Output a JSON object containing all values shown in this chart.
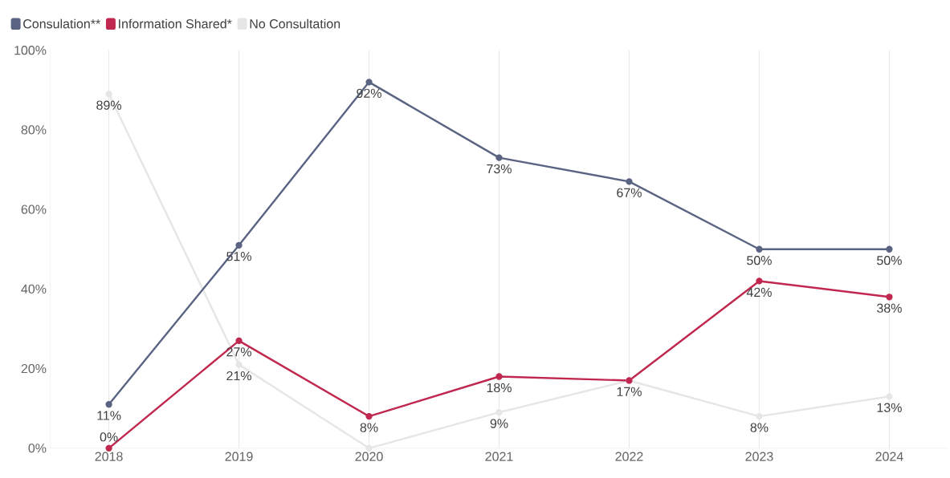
{
  "chart_data": {
    "type": "line",
    "categories": [
      "2018",
      "2019",
      "2020",
      "2021",
      "2022",
      "2023",
      "2024"
    ],
    "series": [
      {
        "name": "Consulation**",
        "color": "#5a6482",
        "values": [
          11,
          51,
          92,
          73,
          67,
          50,
          50
        ],
        "value_labels": [
          "11%",
          "51%",
          "92%",
          "73%",
          "67%",
          "50%",
          "50%"
        ]
      },
      {
        "name": "Information Shared*",
        "color": "#c0284f",
        "values": [
          0,
          27,
          8,
          18,
          17,
          42,
          38
        ],
        "value_labels": [
          "0%",
          "27%",
          "8%",
          "18%",
          null,
          "42%",
          "38%"
        ]
      },
      {
        "name": "No Consultation",
        "color": "#e6e6e6",
        "values": [
          89,
          21,
          0,
          9,
          17,
          8,
          13
        ],
        "value_labels": [
          "89%",
          "21%",
          null,
          "9%",
          "17%",
          "8%",
          "13%"
        ]
      }
    ],
    "ylim": [
      0,
      100
    ],
    "yticks": [
      {
        "value": 0,
        "label": "0%"
      },
      {
        "value": 20,
        "label": "20%"
      },
      {
        "value": 40,
        "label": "40%"
      },
      {
        "value": 60,
        "label": "60%"
      },
      {
        "value": 80,
        "label": "80%"
      },
      {
        "value": 100,
        "label": "100%"
      }
    ],
    "grid": "x",
    "legend": "top left",
    "marker": "circle",
    "line_style": "solid"
  }
}
